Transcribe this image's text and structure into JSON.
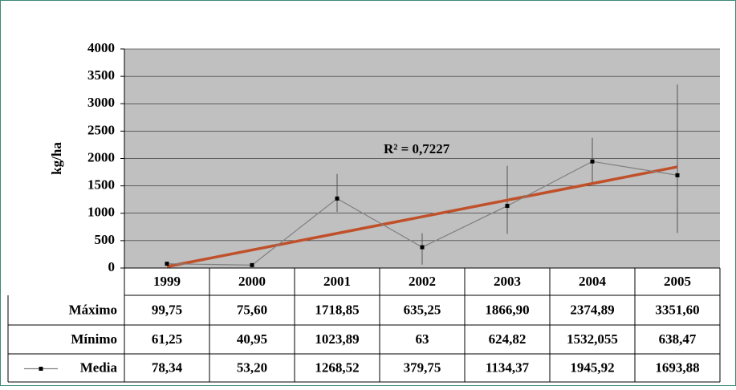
{
  "chart_data": {
    "type": "line",
    "y_label": "kg/ha",
    "categories": [
      "1999",
      "2000",
      "2001",
      "2002",
      "2003",
      "2004",
      "2005"
    ],
    "series": [
      {
        "name": "Máximo",
        "color": "#000000",
        "values": [
          99.75,
          75.6,
          1718.85,
          635.25,
          1866.9,
          2374.89,
          3351.6
        ],
        "value_labels": [
          "99,75",
          "75,60",
          "1718,85",
          "635,25",
          "1866,90",
          "2374,89",
          "3351,60"
        ]
      },
      {
        "name": "Mínimo",
        "color": "#000000",
        "values": [
          61.25,
          40.95,
          1023.89,
          63,
          624.82,
          1532.055,
          638.47
        ],
        "value_labels": [
          "61,25",
          "40,95",
          "1023,89",
          "63",
          "624,82",
          "1532,055",
          "638,47"
        ]
      },
      {
        "name": "Media",
        "color": "#808080",
        "values": [
          78.34,
          53.2,
          1268.52,
          379.75,
          1134.37,
          1945.92,
          1693.88
        ],
        "value_labels": [
          "78,34",
          "53,20",
          "1268,52",
          "379,75",
          "1134,37",
          "1945,92",
          "1693,88"
        ]
      }
    ],
    "trend": {
      "label": "R² = 0,7227",
      "color": "#c0502a",
      "values": [
        25.8,
        1846.8
      ]
    },
    "ylim": [
      0,
      4000
    ],
    "yticks": [
      0,
      500,
      1000,
      1500,
      2000,
      2500,
      3000,
      3500,
      4000
    ],
    "grid": true,
    "plot_background": "#c0c0c0"
  }
}
